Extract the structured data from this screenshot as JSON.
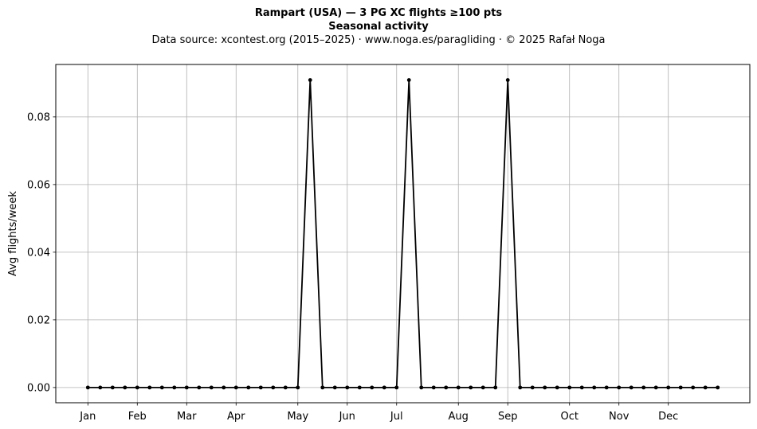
{
  "chart_data": {
    "type": "line",
    "title": "Rampart (USA)  —  3 PG XC flights ≥100 pts",
    "subtitle": "Seasonal activity",
    "source_line": "Data source: xcontest.org (2015–2025)  ·  www.noga.es/paragliding  ·  © 2025 Rafał Noga",
    "xlabel": "",
    "ylabel": "Avg flights/week",
    "ylim": [
      -0.0045,
      0.0955
    ],
    "xlim": [
      -2.6,
      53.6
    ],
    "yticks": [
      0.0,
      0.02,
      0.04,
      0.06,
      0.08
    ],
    "ytick_labels": [
      "0.00",
      "0.02",
      "0.04",
      "0.06",
      "0.08"
    ],
    "xticks": [
      0,
      4,
      8,
      12,
      17,
      21,
      25,
      30,
      34,
      39,
      43,
      47
    ],
    "xtick_labels": [
      "Jan",
      "Feb",
      "Mar",
      "Apr",
      "May",
      "Jun",
      "Jul",
      "Aug",
      "Sep",
      "Oct",
      "Nov",
      "Dec"
    ],
    "grid": true,
    "line_color": "#000000",
    "x": [
      0,
      1,
      2,
      3,
      4,
      5,
      6,
      7,
      8,
      9,
      10,
      11,
      12,
      13,
      14,
      15,
      16,
      17,
      18,
      19,
      20,
      21,
      22,
      23,
      24,
      25,
      26,
      27,
      28,
      29,
      30,
      31,
      32,
      33,
      34,
      35,
      36,
      37,
      38,
      39,
      40,
      41,
      42,
      43,
      44,
      45,
      46,
      47,
      48,
      49,
      50,
      51
    ],
    "values": [
      0,
      0,
      0,
      0,
      0,
      0,
      0,
      0,
      0,
      0,
      0,
      0,
      0,
      0,
      0,
      0,
      0,
      0,
      0.0909,
      0,
      0,
      0,
      0,
      0,
      0,
      0,
      0.0909,
      0,
      0,
      0,
      0,
      0,
      0,
      0,
      0.0909,
      0,
      0,
      0,
      0,
      0,
      0,
      0,
      0,
      0,
      0,
      0,
      0,
      0,
      0,
      0,
      0,
      0
    ]
  }
}
